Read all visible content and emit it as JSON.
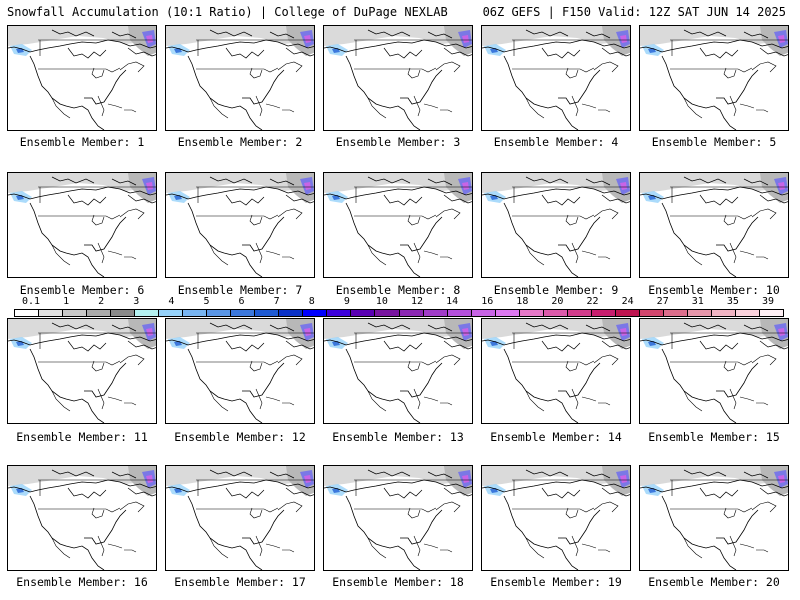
{
  "header": {
    "left_title": "Snowfall Accumulation (10:1 Ratio) | College of DuPage NEXLAB",
    "right_title": "06Z GEFS | F150 Valid: 12Z SAT JUN 14 2025"
  },
  "panels": [
    {
      "label": "Ensemble Member: 1"
    },
    {
      "label": "Ensemble Member: 2"
    },
    {
      "label": "Ensemble Member: 3"
    },
    {
      "label": "Ensemble Member: 4"
    },
    {
      "label": "Ensemble Member: 5"
    },
    {
      "label": "Ensemble Member: 6"
    },
    {
      "label": "Ensemble Member: 7"
    },
    {
      "label": "Ensemble Member: 8"
    },
    {
      "label": "Ensemble Member: 9"
    },
    {
      "label": "Ensemble Member: 10"
    },
    {
      "label": "Ensemble Member: 11"
    },
    {
      "label": "Ensemble Member: 12"
    },
    {
      "label": "Ensemble Member: 13"
    },
    {
      "label": "Ensemble Member: 14"
    },
    {
      "label": "Ensemble Member: 15"
    },
    {
      "label": "Ensemble Member: 16"
    },
    {
      "label": "Ensemble Member: 17"
    },
    {
      "label": "Ensemble Member: 18"
    },
    {
      "label": "Ensemble Member: 19"
    },
    {
      "label": "Ensemble Member: 20"
    }
  ],
  "colorbar": {
    "labels": [
      "0.1",
      "1",
      "2",
      "3",
      "4",
      "5",
      "6",
      "7",
      "8",
      "9",
      "10",
      "12",
      "14",
      "16",
      "18",
      "20",
      "22",
      "24",
      "27",
      "31",
      "35",
      "39"
    ],
    "colors": [
      "#ffffff",
      "#e2e2e2",
      "#c8c8c8",
      "#aaaaaa",
      "#8a8a8a",
      "#b4f0f0",
      "#96d2fa",
      "#78b4f0",
      "#5a96e6",
      "#3c78dc",
      "#1e5ad2",
      "#0a32c8",
      "#0000ff",
      "#3c00dc",
      "#5a00b4",
      "#7814a0",
      "#8c28b4",
      "#a03cc8",
      "#b450dc",
      "#c864e6",
      "#dc78f0",
      "#e678c8",
      "#dc5aaa",
      "#d23c8c",
      "#c81e6e",
      "#be1450",
      "#d2466e",
      "#dc6e8c",
      "#e696aa",
      "#f0b4c3",
      "#fad2dc",
      "#fff0f5"
    ]
  }
}
